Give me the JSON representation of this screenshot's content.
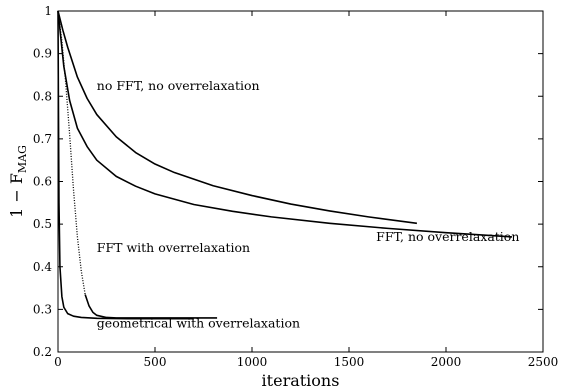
{
  "chart_data": {
    "type": "line",
    "title": "",
    "xlabel": "iterations",
    "ylabel": "1 − F",
    "ylabel_subscript": "MAG",
    "xlim": [
      0,
      2500
    ],
    "ylim": [
      0.2,
      1.0
    ],
    "xticks": [
      0,
      500,
      1000,
      1500,
      2000,
      2500
    ],
    "yticks": [
      0.2,
      0.3,
      0.4,
      0.5,
      0.6,
      0.7,
      0.8,
      0.9,
      1
    ],
    "grid": false,
    "legend": "none",
    "series": [
      {
        "x": [
          0,
          25,
          50,
          100,
          150,
          200,
          300,
          400,
          500,
          600,
          800,
          1000,
          1200,
          1400,
          1600,
          1850
        ],
        "y": [
          1.0,
          0.955,
          0.915,
          0.845,
          0.795,
          0.757,
          0.705,
          0.668,
          0.641,
          0.621,
          0.59,
          0.567,
          0.547,
          0.531,
          0.517,
          0.502
        ],
        "style": "solid"
      },
      {
        "x": [
          0,
          15,
          30,
          60,
          100,
          150,
          200,
          300,
          400,
          500,
          700,
          900,
          1100,
          1400,
          1700,
          2000,
          2340
        ],
        "y": [
          1.0,
          0.935,
          0.87,
          0.79,
          0.725,
          0.682,
          0.65,
          0.612,
          0.589,
          0.571,
          0.546,
          0.53,
          0.517,
          0.502,
          0.49,
          0.48,
          0.47
        ],
        "style": "solid"
      },
      {
        "x": [
          0,
          20,
          40,
          60,
          80,
          100,
          120,
          140,
          160,
          180,
          200,
          250,
          300,
          400,
          500,
          600,
          700,
          820
        ],
        "y": [
          1.0,
          0.93,
          0.83,
          0.71,
          0.58,
          0.47,
          0.39,
          0.335,
          0.308,
          0.293,
          0.286,
          0.281,
          0.28,
          0.28,
          0.28,
          0.28,
          0.28,
          0.28
        ],
        "style": "solid-dotted-start"
      },
      {
        "x": [
          0,
          2,
          5,
          10,
          20,
          30,
          50,
          80,
          120,
          200,
          400,
          700
        ],
        "y": [
          1.0,
          0.8,
          0.55,
          0.4,
          0.33,
          0.305,
          0.29,
          0.284,
          0.281,
          0.279,
          0.278,
          0.278
        ],
        "style": "solid"
      }
    ],
    "annotations": [
      {
        "text": "no FFT, no overrelaxation",
        "x": 200,
        "y": 0.815
      },
      {
        "text": "FFT, no overrelaxation",
        "x": 1640,
        "y": 0.46
      },
      {
        "text": "FFT with overrelaxation",
        "x": 200,
        "y": 0.435
      },
      {
        "text": "geometrical with overrelaxation",
        "x": 200,
        "y": 0.258
      }
    ]
  }
}
